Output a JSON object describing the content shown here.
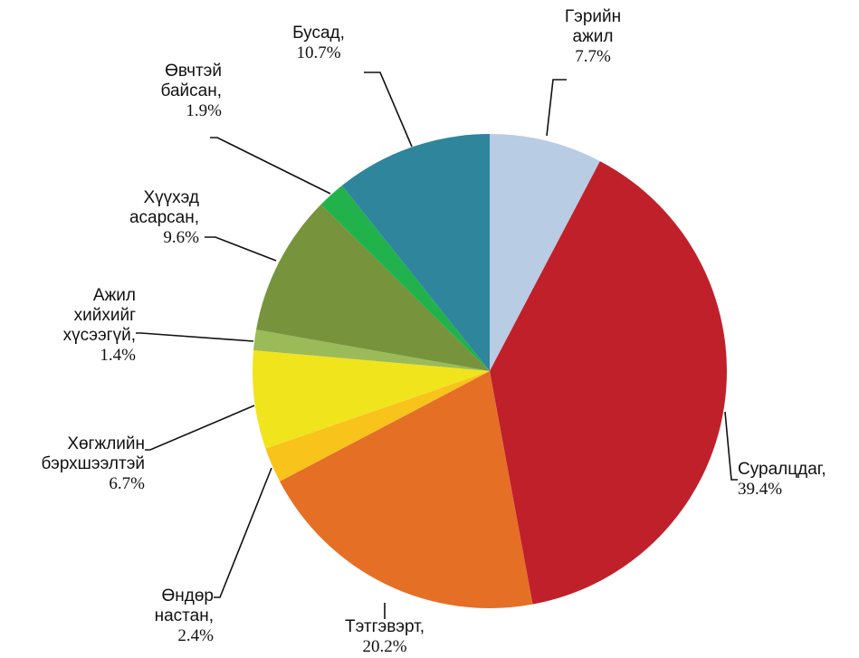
{
  "chart_data": {
    "type": "pie",
    "categories": [
      "Гэрийн ажил",
      "Суралцдаг,",
      "Тэтгэвэрт,",
      "Өндөр настан,",
      "Хөгжлийн бэрхшээлтэй",
      "Ажил хийхийг хүсээгүй,",
      "Хүүхэд асарсан,",
      "Өвчтэй байсан,",
      "Бусад,"
    ],
    "values": [
      7.7,
      39.4,
      20.2,
      2.4,
      6.7,
      1.4,
      9.6,
      1.9,
      10.7
    ],
    "value_labels": [
      "7.7%",
      "39.4%",
      "20.2%",
      "2.4%",
      "6.7%",
      "1.4%",
      "9.6%",
      "1.9%",
      "10.7%"
    ],
    "colors": [
      "#b8cce4",
      "#c0202a",
      "#e56f25",
      "#f8c31b",
      "#f0e41d",
      "#9bbb59",
      "#77933c",
      "#22b24c",
      "#2e859c"
    ]
  }
}
